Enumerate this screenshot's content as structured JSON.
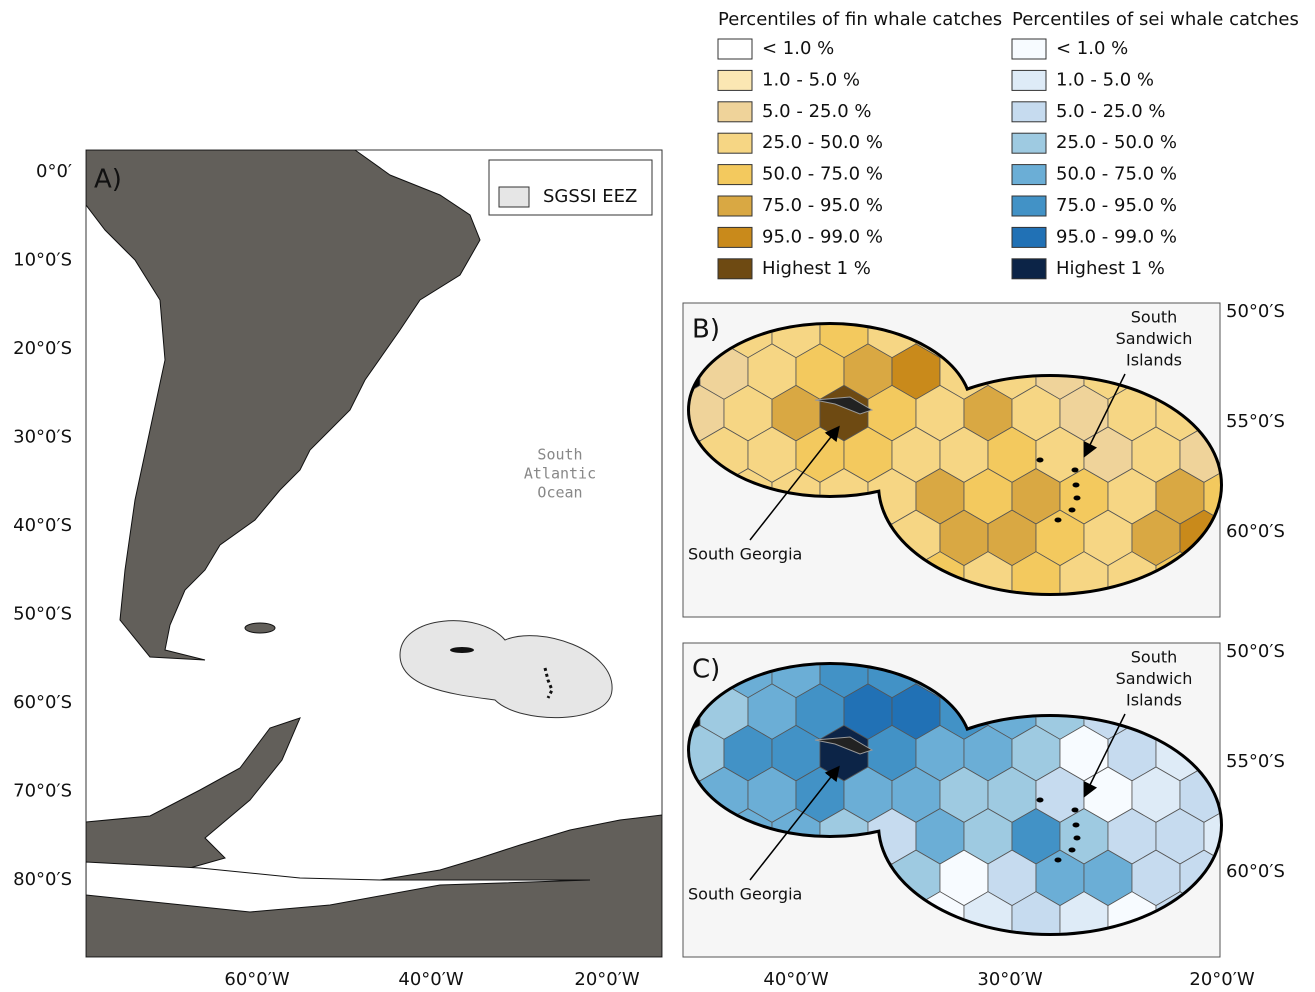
{
  "panel_a": {
    "label": "A)",
    "legend": "SGSSI EEZ",
    "ocean_label": [
      "South",
      "Atlantic",
      "Ocean"
    ],
    "y_labels": [
      "0°0′",
      "10°0′S",
      "20°0′S",
      "30°0′S",
      "40°0′S",
      "50°0′S",
      "60°0′S",
      "70°0′S",
      "80°0′S"
    ],
    "x_labels": [
      "60°0′W",
      "40°0′W",
      "20°0′W"
    ]
  },
  "legend_fin": {
    "title": "Percentiles of fin whale catches",
    "classes": [
      {
        "label": "< 1.0 %",
        "color": "#ffffff"
      },
      {
        "label": "1.0 - 5.0 %",
        "color": "#fbe7b3"
      },
      {
        "label": "5.0 - 25.0 %",
        "color": "#efd39a"
      },
      {
        "label": "25.0 - 50.0 %",
        "color": "#f6d684"
      },
      {
        "label": "50.0 - 75.0 %",
        "color": "#f3c95e"
      },
      {
        "label": "75.0 - 95.0 %",
        "color": "#d9a843"
      },
      {
        "label": "95.0 - 99.0 %",
        "color": "#c98a1b"
      },
      {
        "label": "Highest 1 %",
        "color": "#6e4a12"
      }
    ]
  },
  "legend_sei": {
    "title": "Percentiles of sei whale catches",
    "classes": [
      {
        "label": "< 1.0 %",
        "color": "#f7fbff"
      },
      {
        "label": "1.0 - 5.0 %",
        "color": "#deebf7"
      },
      {
        "label": "5.0 - 25.0 %",
        "color": "#c6dbef"
      },
      {
        "label": "25.0 - 50.0 %",
        "color": "#9ecae1"
      },
      {
        "label": "50.0 - 75.0 %",
        "color": "#6baed6"
      },
      {
        "label": "75.0 - 95.0 %",
        "color": "#4292c6"
      },
      {
        "label": "95.0 - 99.0 %",
        "color": "#2171b5"
      },
      {
        "label": "Highest 1 %",
        "color": "#0c2447"
      }
    ]
  },
  "panel_b": {
    "label": "B)",
    "south_sandwich": [
      "South",
      "Sandwich",
      "Islands"
    ],
    "south_georgia": "South Georgia",
    "y_labels": [
      "50°0′S",
      "55°0′S",
      "60°0′S"
    ],
    "cells": [
      [
        3,
        3,
        3,
        4,
        3,
        3,
        2,
        2,
        2,
        2,
        1,
        1
      ],
      [
        2,
        3,
        4,
        5,
        6,
        3,
        3,
        2,
        3,
        3,
        2,
        1
      ],
      [
        2,
        3,
        5,
        7,
        4,
        3,
        5,
        3,
        2,
        3,
        3,
        2
      ],
      [
        3,
        3,
        4,
        4,
        3,
        3,
        4,
        3,
        2,
        3,
        2,
        3
      ],
      [
        3,
        3,
        3,
        3,
        3,
        5,
        4,
        5,
        4,
        3,
        5,
        4
      ],
      [
        3,
        3,
        3,
        3,
        3,
        5,
        5,
        4,
        3,
        5,
        6,
        5
      ],
      [
        3,
        3,
        3,
        3,
        3,
        4,
        3,
        4,
        3,
        3,
        4,
        3
      ]
    ]
  },
  "panel_c": {
    "label": "C)",
    "south_sandwich": [
      "South",
      "Sandwich",
      "Islands"
    ],
    "south_georgia": "South Georgia",
    "y_labels": [
      "50°0′S",
      "55°0′S",
      "60°0′S"
    ],
    "cells": [
      [
        4,
        4,
        4,
        5,
        5,
        4,
        3,
        3,
        2,
        1,
        0,
        0
      ],
      [
        3,
        4,
        5,
        6,
        6,
        5,
        4,
        3,
        2,
        0,
        1,
        1
      ],
      [
        3,
        5,
        5,
        7,
        5,
        4,
        4,
        3,
        0,
        2,
        1,
        2
      ],
      [
        4,
        4,
        5,
        4,
        4,
        3,
        3,
        2,
        0,
        1,
        2,
        2
      ],
      [
        4,
        4,
        4,
        3,
        2,
        4,
        3,
        5,
        3,
        2,
        2,
        1
      ],
      [
        4,
        4,
        4,
        3,
        3,
        0,
        2,
        4,
        4,
        2,
        2,
        2
      ],
      [
        4,
        4,
        4,
        3,
        3,
        0,
        1,
        2,
        1,
        0,
        2,
        2
      ]
    ]
  },
  "x_labels_bc": [
    "40°0′W",
    "30°0′W",
    "20°0′W"
  ]
}
